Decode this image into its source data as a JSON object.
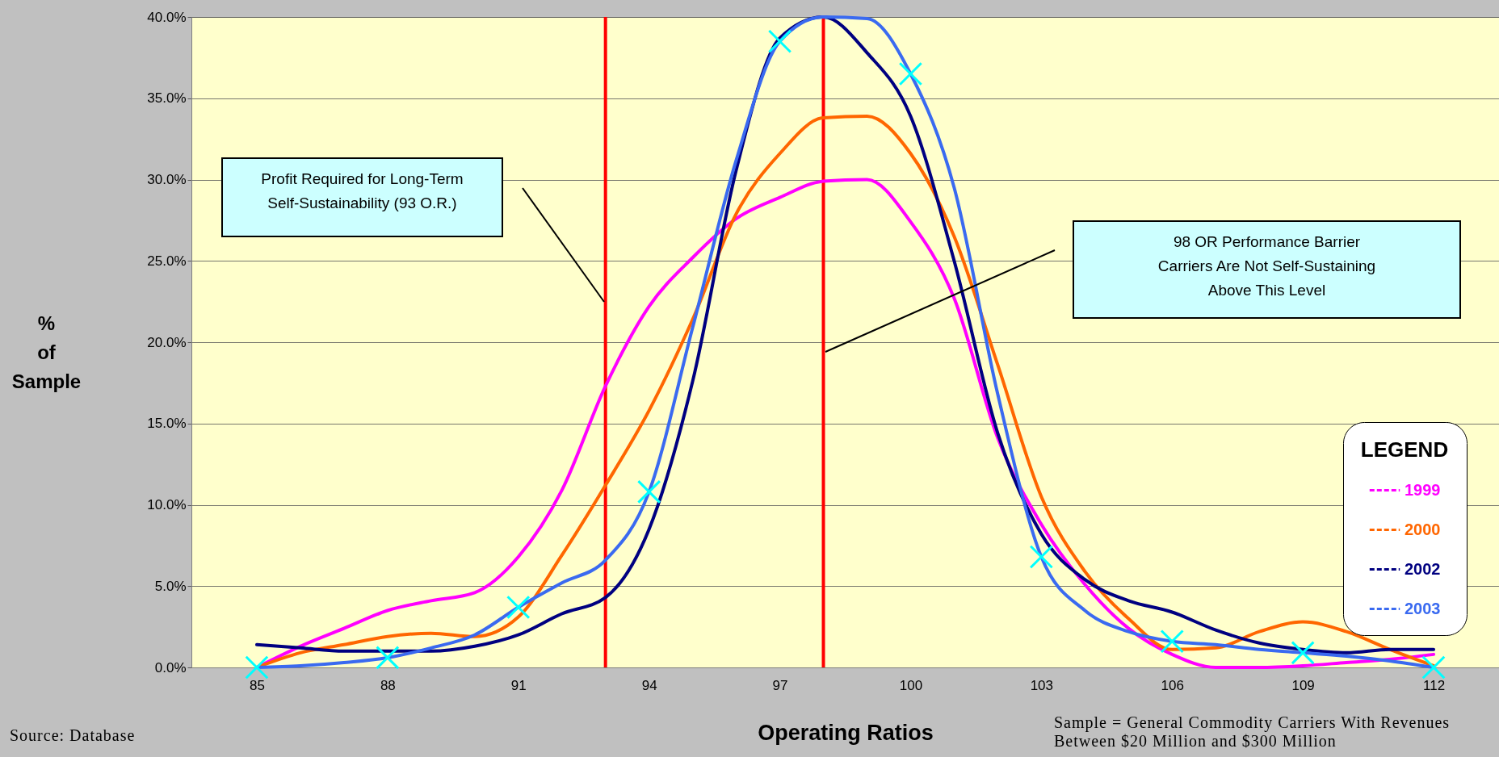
{
  "chart_data": {
    "type": "line",
    "xlabel": "Operating Ratios",
    "ylabel": "% of Sample",
    "legend_title": "LEGEND",
    "x": [
      85,
      86,
      87,
      88,
      89,
      90,
      91,
      92,
      93,
      94,
      95,
      96,
      97,
      98,
      99,
      100,
      101,
      102,
      103,
      104,
      105,
      106,
      107,
      108,
      109,
      110,
      111,
      112
    ],
    "xlim": [
      83.5,
      113.5
    ],
    "xticks": [
      85,
      88,
      91,
      94,
      97,
      100,
      103,
      106,
      109,
      112
    ],
    "ylim": [
      0,
      40
    ],
    "yticks": [
      {
        "value": 0,
        "label": "0.0%"
      },
      {
        "value": 5,
        "label": "5.0%"
      },
      {
        "value": 10,
        "label": "10.0%"
      },
      {
        "value": 15,
        "label": "15.0%"
      },
      {
        "value": 20,
        "label": "20.0%"
      },
      {
        "value": 25,
        "label": "25.0%"
      },
      {
        "value": 30,
        "label": "30.0%"
      },
      {
        "value": 35,
        "label": "35.0%"
      },
      {
        "value": 40,
        "label": "40.0%"
      }
    ],
    "series": [
      {
        "name": "1999",
        "color": "#ff00ff",
        "values": [
          0,
          1.3,
          2.4,
          3.5,
          4.1,
          4.6,
          6.8,
          10.9,
          17.3,
          22.2,
          25.2,
          27.6,
          28.9,
          29.9,
          30.0,
          27.4,
          22.7,
          14.1,
          8.8,
          5.1,
          2.4,
          0.8,
          0,
          0,
          0.1,
          0.3,
          0.5,
          0.8
        ]
      },
      {
        "name": "2000",
        "color": "#ff6600",
        "values": [
          0,
          0.9,
          1.4,
          1.9,
          2.1,
          1.9,
          3.1,
          6.9,
          11.2,
          15.8,
          21.4,
          27.9,
          31.6,
          33.8,
          33.9,
          31.6,
          26.5,
          18.6,
          10.5,
          5.9,
          3.0,
          1.1,
          1.2,
          2.2,
          2.8,
          2.2,
          1.1,
          0.1
        ]
      },
      {
        "name": "2002",
        "color": "#000080",
        "values": [
          1.4,
          1.2,
          1.0,
          1.0,
          1.0,
          1.3,
          2.0,
          3.3,
          4.3,
          8.5,
          17.6,
          30.6,
          38.7,
          40.0,
          37.8,
          33.9,
          25.0,
          14.4,
          8.2,
          5.4,
          4.1,
          3.4,
          2.3,
          1.5,
          1.1,
          0.9,
          1.1,
          1.1
        ]
      },
      {
        "name": "2003",
        "color": "#3a6af0",
        "values": [
          0,
          0.1,
          0.3,
          0.6,
          1.2,
          2.0,
          3.7,
          5.2,
          6.6,
          10.8,
          20.9,
          31.2,
          38.5,
          40.0,
          39.9,
          36.5,
          29.5,
          16.8,
          6.8,
          3.5,
          2.2,
          1.6,
          1.4,
          1.1,
          0.9,
          0.7,
          0.4,
          0
        ]
      },
      {
        "type": "scatter",
        "marker": "cross",
        "color": "#00ffff",
        "x": [
          85,
          88,
          91,
          94,
          97,
          100,
          103,
          106,
          109,
          112
        ],
        "values": [
          0,
          0.6,
          3.7,
          10.8,
          38.5,
          36.5,
          6.8,
          1.6,
          0.9,
          0
        ]
      }
    ],
    "ref_lines": [
      {
        "axis": "x",
        "value": 93,
        "color": "#ff0000"
      },
      {
        "axis": "x",
        "value": 98,
        "color": "#ff0000"
      }
    ],
    "annotations": [
      "Profit Required for Long-Term Self-Sustainability (93 O.R.)",
      "98 OR Performance Barrier Carriers Are Not Self-Sustaining Above This Level",
      "Source: Database",
      "Sample = General Commodity Carriers With Revenues Between $20 Million and $300 Million"
    ],
    "grid": "y",
    "legend": "bottom right"
  }
}
